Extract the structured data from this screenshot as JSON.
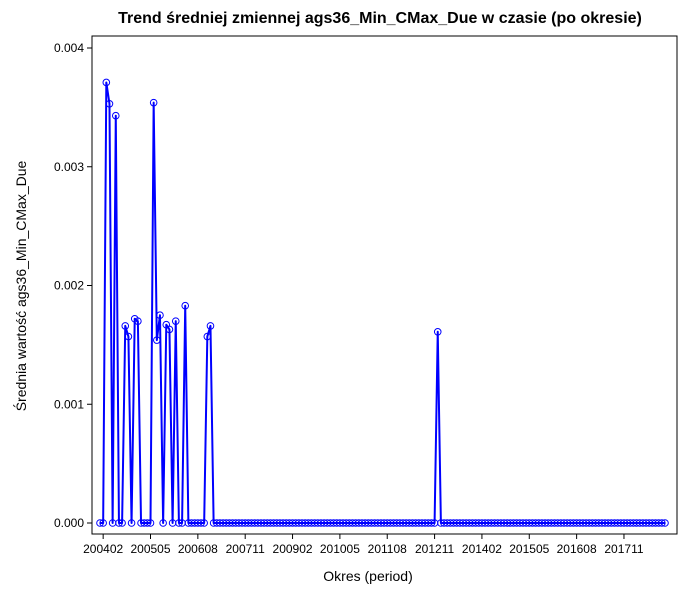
{
  "chart_data": {
    "type": "line",
    "title": "Trend średniej zmiennej ags36_Min_CMax_Due w czasie (po okresie)",
    "xlabel": "Okres (period)",
    "ylabel": "Średnia wartość ags36_Min_CMax_Due",
    "x_tick_labels": [
      "200402",
      "200505",
      "200608",
      "200711",
      "200902",
      "201005",
      "201108",
      "201211",
      "201402",
      "201505",
      "201608",
      "201711"
    ],
    "y_ticks": [
      0,
      0.001,
      0.002,
      0.003,
      0.004
    ],
    "y_tick_labels": [
      "0.000",
      "0.001",
      "0.002",
      "0.003",
      "0.004"
    ],
    "ylim": [
      0,
      0.004
    ],
    "xlim": [
      "200401",
      "201812"
    ],
    "grid": false,
    "legend": "none",
    "line_color": "#0000ff",
    "series": [
      {
        "x": [
          "200401",
          "200402",
          "200403",
          "200404",
          "200405",
          "200406",
          "200407",
          "200408",
          "200409",
          "200410",
          "200411",
          "200412",
          "200501",
          "200502",
          "200503",
          "200504",
          "200505",
          "200506",
          "200507",
          "200508",
          "200509",
          "200510",
          "200511",
          "200512",
          "200601",
          "200602",
          "200603",
          "200604",
          "200605",
          "200606",
          "200607",
          "200608",
          "200609",
          "200610",
          "200611",
          "200612",
          "200701",
          "200702",
          "200703",
          "200704",
          "200705",
          "200706",
          "200707",
          "200708",
          "200709",
          "200710",
          "200711",
          "200712",
          "200801",
          "200802",
          "200803",
          "200804",
          "200805",
          "200806",
          "200807",
          "200808",
          "200809",
          "200810",
          "200811",
          "200812",
          "200901",
          "200902",
          "200903",
          "200904",
          "200905",
          "200906",
          "200907",
          "200908",
          "200909",
          "200910",
          "200911",
          "200912",
          "201001",
          "201002",
          "201003",
          "201004",
          "201005",
          "201006",
          "201007",
          "201008",
          "201009",
          "201010",
          "201011",
          "201012",
          "201101",
          "201102",
          "201103",
          "201104",
          "201105",
          "201106",
          "201107",
          "201108",
          "201109",
          "201110",
          "201111",
          "201112",
          "201201",
          "201202",
          "201203",
          "201204",
          "201205",
          "201206",
          "201207",
          "201208",
          "201209",
          "201210",
          "201211",
          "201212",
          "201301",
          "201302",
          "201303",
          "201304",
          "201305",
          "201306",
          "201307",
          "201308",
          "201309",
          "201310",
          "201311",
          "201312",
          "201401",
          "201402",
          "201403",
          "201404",
          "201405",
          "201406",
          "201407",
          "201408",
          "201409",
          "201410",
          "201411",
          "201412",
          "201501",
          "201502",
          "201503",
          "201504",
          "201505",
          "201506",
          "201507",
          "201508",
          "201509",
          "201510",
          "201511",
          "201512",
          "201601",
          "201602",
          "201603",
          "201604",
          "201605",
          "201606",
          "201607",
          "201608",
          "201609",
          "201610",
          "201611",
          "201612",
          "201701",
          "201702",
          "201703",
          "201704",
          "201705",
          "201706",
          "201707",
          "201708",
          "201709",
          "201710",
          "201711",
          "201712",
          "201801",
          "201802",
          "201803",
          "201804",
          "201805",
          "201806",
          "201807",
          "201808",
          "201809",
          "201810",
          "201811",
          "201812"
        ],
        "y": [
          0,
          0,
          0.00371,
          0.00353,
          0,
          0.00343,
          0,
          0,
          0.00166,
          0.00157,
          0,
          0.00172,
          0.0017,
          0,
          0,
          0,
          0,
          0.00354,
          0.00154,
          0.00175,
          0,
          0.00167,
          0.00163,
          0,
          0.0017,
          0,
          0,
          0.00183,
          0,
          0,
          0,
          0,
          0,
          0,
          0.00157,
          0.00166,
          0,
          0,
          0,
          0,
          0,
          0,
          0,
          0,
          0,
          0,
          0,
          0,
          0,
          0,
          0,
          0,
          0,
          0,
          0,
          0,
          0,
          0,
          0,
          0,
          0,
          0,
          0,
          0,
          0,
          0,
          0,
          0,
          0,
          0,
          0,
          0,
          0,
          0,
          0,
          0,
          0,
          0,
          0,
          0,
          0,
          0,
          0,
          0,
          0,
          0,
          0,
          0,
          0,
          0,
          0,
          0,
          0,
          0,
          0,
          0,
          0,
          0,
          0,
          0,
          0,
          0,
          0,
          0,
          0,
          0,
          0,
          0.00161,
          0,
          0,
          0,
          0,
          0,
          0,
          0,
          0,
          0,
          0,
          0,
          0,
          0,
          0,
          0,
          0,
          0,
          0,
          0,
          0,
          0,
          0,
          0,
          0,
          0,
          0,
          0,
          0,
          0,
          0,
          0,
          0,
          0,
          0,
          0,
          0,
          0,
          0,
          0,
          0,
          0,
          0,
          0,
          0,
          0,
          0,
          0,
          0,
          0,
          0,
          0,
          0,
          0,
          0,
          0,
          0,
          0,
          0,
          0,
          0,
          0,
          0,
          0,
          0,
          0,
          0,
          0,
          0,
          0,
          0,
          0,
          0
        ]
      }
    ]
  }
}
